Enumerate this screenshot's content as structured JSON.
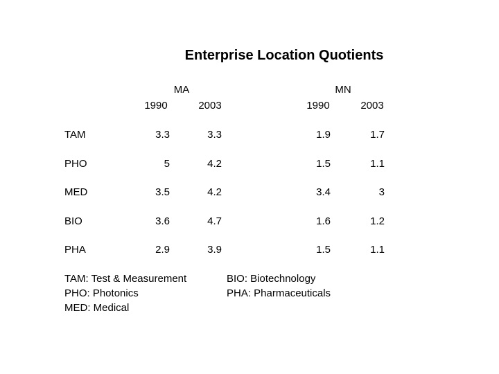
{
  "title": "Enterprise Location Quotients",
  "table": {
    "groups": [
      "MA",
      "MN"
    ],
    "years": [
      "1990",
      "2003",
      "1990",
      "2003"
    ],
    "rows": [
      [
        "TAM",
        3.3,
        3.3,
        1.9,
        1.7
      ],
      [
        "PHO",
        5,
        4.2,
        1.5,
        1.1
      ],
      [
        "MED",
        3.5,
        4.2,
        3.4,
        3
      ],
      [
        "BIO",
        3.6,
        4.7,
        1.6,
        1.2
      ],
      [
        "PHA",
        2.9,
        3.9,
        1.5,
        1.1
      ]
    ]
  },
  "legend": {
    "left": [
      "TAM: Test & Measurement",
      "PHO: Photonics",
      "MED: Medical"
    ],
    "right": [
      "BIO: Biotechnology",
      "PHA: Pharmaceuticals"
    ]
  }
}
